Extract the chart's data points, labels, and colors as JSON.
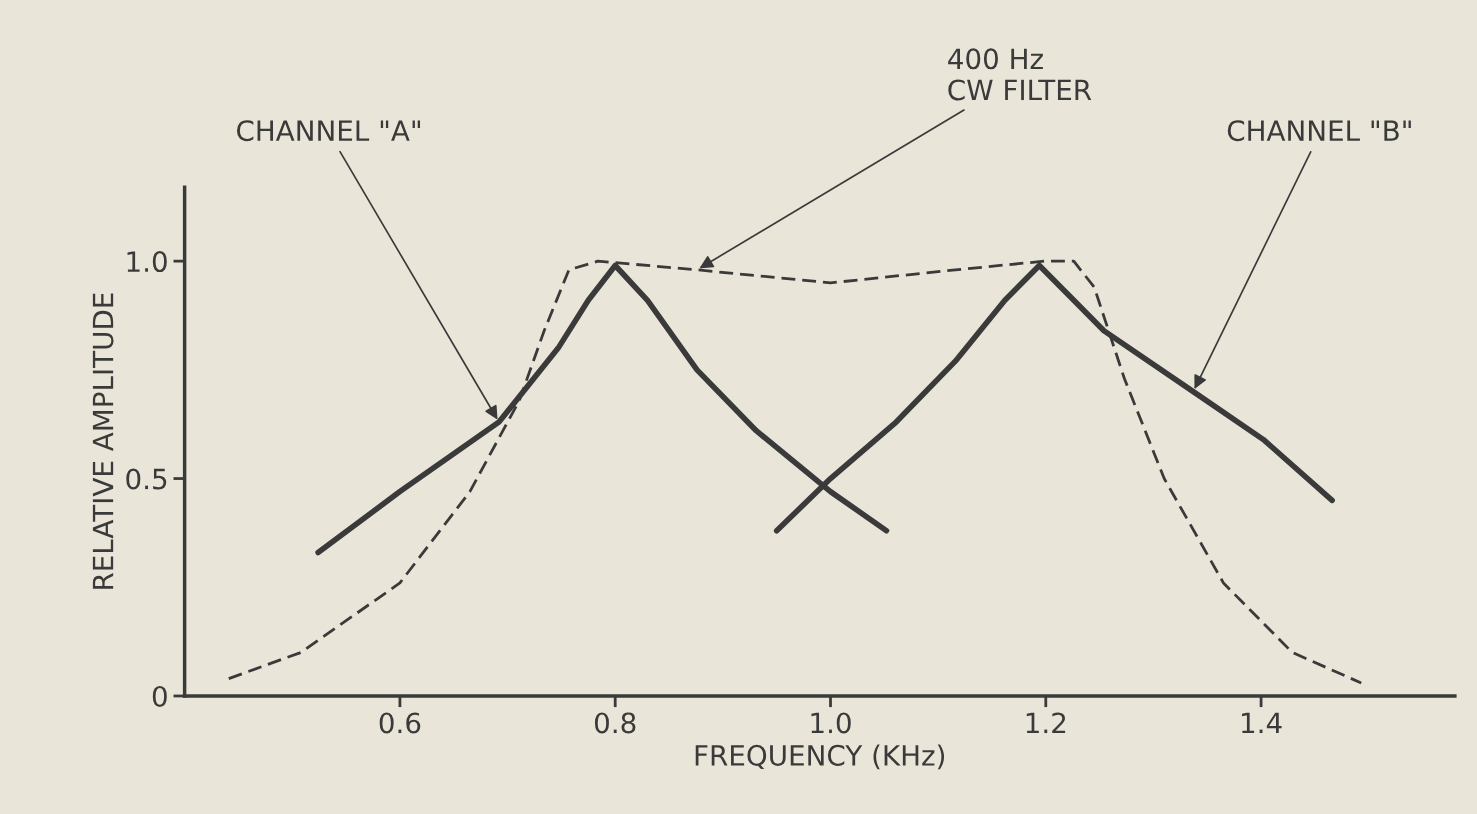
{
  "chart_data": {
    "type": "line",
    "xlabel": "FREQUENCY (KHz)",
    "ylabel": "RELATIVE AMPLITUDE",
    "xlim": [
      0.4,
      1.58
    ],
    "ylim": [
      0,
      1.17
    ],
    "xticks": [
      0.6,
      0.8,
      {
        "value": 1.0,
        "label": "1.0"
      },
      1.2,
      1.4
    ],
    "yticks": [
      0,
      0.5,
      {
        "value": 1.0,
        "label": "1.0"
      }
    ],
    "grid": false,
    "legend": false,
    "marker": "none",
    "series": [
      {
        "name": "CHANNEL \"A\"",
        "color": "#3a3a3a",
        "line_style": "solid",
        "x": [
          0.524,
          0.6,
          0.692,
          0.747,
          0.775,
          0.8,
          0.83,
          0.876,
          0.931,
          1.0,
          1.052
        ],
        "values": [
          0.33,
          0.47,
          0.63,
          0.8,
          0.91,
          0.99,
          0.91,
          0.75,
          0.61,
          0.47,
          0.38
        ]
      },
      {
        "name": "CHANNEL \"B\"",
        "color": "#3a3a3a",
        "line_style": "solid",
        "x": [
          0.95,
          1.0,
          1.061,
          1.116,
          1.162,
          1.194,
          1.226,
          1.254,
          1.337,
          1.402,
          1.466
        ],
        "values": [
          0.38,
          0.5,
          0.63,
          0.77,
          0.91,
          0.99,
          0.91,
          0.84,
          0.7,
          0.59,
          0.45
        ]
      },
      {
        "name": "400 Hz\nCW FILTER",
        "color": "#3a3a3a",
        "line_style": "dashed",
        "x": [
          0.441,
          0.508,
          0.6,
          0.665,
          0.711,
          0.734,
          0.757,
          0.784,
          0.876,
          1.0,
          1.116,
          1.199,
          1.226,
          1.245,
          1.273,
          1.31,
          1.365,
          1.429,
          1.493
        ],
        "values": [
          0.04,
          0.1,
          0.26,
          0.47,
          0.68,
          0.84,
          0.98,
          1.0,
          0.98,
          0.95,
          0.98,
          1.0,
          1.0,
          0.94,
          0.73,
          0.5,
          0.26,
          0.1,
          0.03
        ]
      }
    ]
  }
}
